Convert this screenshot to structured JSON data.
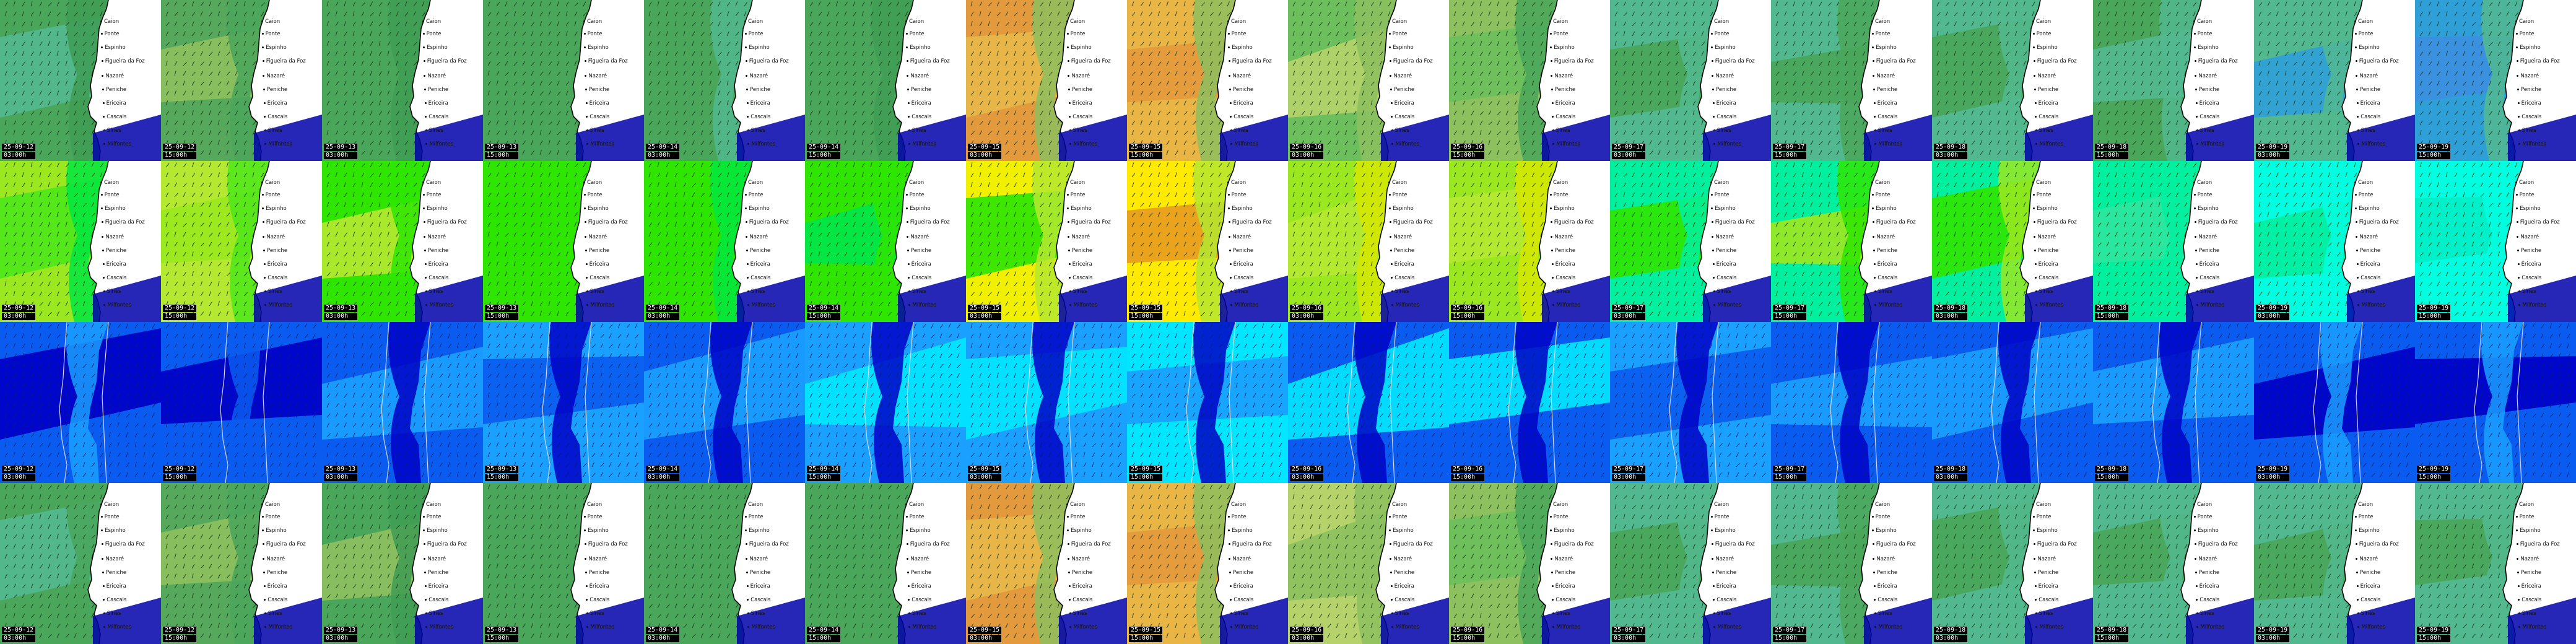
{
  "columns": [
    {
      "date": "25-09-12",
      "run": "03:00h"
    },
    {
      "date": "25-09-12",
      "run": "15:00h"
    },
    {
      "date": "25-09-13",
      "run": "03:00h"
    },
    {
      "date": "25-09-13",
      "run": "15:00h"
    },
    {
      "date": "25-09-14",
      "run": "03:00h"
    },
    {
      "date": "25-09-14",
      "run": "15:00h"
    },
    {
      "date": "25-09-15",
      "run": "03:00h"
    },
    {
      "date": "25-09-15",
      "run": "15:00h"
    },
    {
      "date": "25-09-16",
      "run": "03:00h"
    },
    {
      "date": "25-09-16",
      "run": "15:00h"
    },
    {
      "date": "25-09-17",
      "run": "03:00h"
    },
    {
      "date": "25-09-17",
      "run": "15:00h"
    },
    {
      "date": "25-09-18",
      "run": "03:00h"
    },
    {
      "date": "25-09-18",
      "run": "15:00h"
    },
    {
      "date": "25-09-19",
      "run": "03:00h"
    },
    {
      "date": "25-09-19",
      "run": "15:00h"
    }
  ],
  "places": [
    "Caion",
    "Ponte",
    "Espinho",
    "Figueira da Foz",
    "Nazaré",
    "Peniche",
    "Ericeira",
    "Cascais",
    "Sines",
    "Milfontes"
  ],
  "rows": [
    {
      "key": "waves",
      "arrows": "#1b3a1b",
      "show_places": true,
      "colors": [
        [
          "#4aa65a",
          "#52b88f",
          "#3f9c55"
        ],
        [
          "#56a85c",
          "#8dc05f",
          "#4aa65a"
        ],
        [
          "#4aa65a",
          "#4aa65a",
          "#3f9c55"
        ],
        [
          "#4aa65a",
          "#4aa65a",
          "#4aa65a"
        ],
        [
          "#4aa65a",
          "#4aa65a",
          "#52b88f"
        ],
        [
          "#4aa65a",
          "#4aa65a",
          "#3f9c55"
        ],
        [
          "#e39a3c",
          "#e8b84a",
          "#8dc05f"
        ],
        [
          "#e9b545",
          "#e39a3c",
          "#8dc05f"
        ],
        [
          "#6cbf5c",
          "#b5d36a",
          "#8dc05f"
        ],
        [
          "#8dc05f",
          "#6cbf5c",
          "#4aa65a"
        ],
        [
          "#52b88f",
          "#4aa65a",
          "#52b88f"
        ],
        [
          "#52b88f",
          "#4aa65a",
          "#4aa65a"
        ],
        [
          "#52b88f",
          "#4aa65a",
          "#52b88f"
        ],
        [
          "#4aa65a",
          "#52b88f",
          "#52b88f"
        ],
        [
          "#52b88f",
          "#2f9fd8",
          "#52b88f"
        ],
        [
          "#2f9fd8",
          "#3b8fe0",
          "#52b88f"
        ]
      ]
    },
    {
      "key": "period",
      "arrows": "#1e3a00",
      "show_places": true,
      "colors": [
        [
          "#9be820",
          "#4ee61a",
          "#00e640"
        ],
        [
          "#b5e830",
          "#9be820",
          "#4ee61a"
        ],
        [
          "#2ee600",
          "#b5e830",
          "#2ee600"
        ],
        [
          "#2ee600",
          "#2ee600",
          "#2ee600"
        ],
        [
          "#2ee600",
          "#2ee600",
          "#00e640"
        ],
        [
          "#2ee600",
          "#00e64a",
          "#2ee600"
        ],
        [
          "#f0f000",
          "#2ee600",
          "#b5e830"
        ],
        [
          "#ffea00",
          "#e89c20",
          "#b5e830"
        ],
        [
          "#9be820",
          "#b5e830",
          "#d6e800"
        ],
        [
          "#9be820",
          "#b5e830",
          "#d6e800"
        ],
        [
          "#00f0a0",
          "#2ee600",
          "#00f0a0"
        ],
        [
          "#00f0a0",
          "#9be820",
          "#2ee600"
        ],
        [
          "#00f0a0",
          "#2ee600",
          "#9be820"
        ],
        [
          "#00f0a0",
          "#2ee6a0",
          "#00f0a0"
        ],
        [
          "#00ffe0",
          "#00f0a0",
          "#00ffe0"
        ],
        [
          "#00ffe0",
          "#00f0c8",
          "#00ffe0"
        ]
      ]
    },
    {
      "key": "wind",
      "arrows": "#002266",
      "show_places": false,
      "colors": [
        [
          "#0a5cf0",
          "#0000c8",
          "#1aa0ff"
        ],
        [
          "#0a5cf0",
          "#0000c8",
          "#0a5cf0"
        ],
        [
          "#0a5cf0",
          "#1aa0ff",
          "#0000c8"
        ],
        [
          "#1aa0ff",
          "#0a5cf0",
          "#0000c8"
        ],
        [
          "#0a5cf0",
          "#1aa0ff",
          "#0000c8"
        ],
        [
          "#1aa0ff",
          "#00e6ff",
          "#0000c8"
        ],
        [
          "#1aa0ff",
          "#00e6ff",
          "#0000c8"
        ],
        [
          "#00e6ff",
          "#1aa0ff",
          "#0000c8"
        ],
        [
          "#0a5cf0",
          "#00e6ff",
          "#0000c8"
        ],
        [
          "#0a5cf0",
          "#00e6ff",
          "#0000c8"
        ],
        [
          "#1aa0ff",
          "#0a5cf0",
          "#0000c8"
        ],
        [
          "#0a5cf0",
          "#1aa0ff",
          "#0000c8"
        ],
        [
          "#0a5cf0",
          "#1aa0ff",
          "#0000c8"
        ],
        [
          "#0a5cf0",
          "#1aa0ff",
          "#0000c8"
        ],
        [
          "#0a5cf0",
          "#0000c8",
          "#1aa0ff"
        ],
        [
          "#0a5cf0",
          "#0000c8",
          "#1aa0ff"
        ]
      ]
    },
    {
      "key": "swell",
      "arrows": "#1b3a1b",
      "show_places": true,
      "colors": [
        [
          "#4aa65a",
          "#52b88f",
          "#4aa65a"
        ],
        [
          "#56a85c",
          "#8dc05f",
          "#4aa65a"
        ],
        [
          "#4aa65a",
          "#8dc05f",
          "#3f9c55"
        ],
        [
          "#4aa65a",
          "#4aa65a",
          "#4aa65a"
        ],
        [
          "#4aa65a",
          "#4aa65a",
          "#4aa65a"
        ],
        [
          "#4aa65a",
          "#4aa65a",
          "#4aa65a"
        ],
        [
          "#e39a3c",
          "#e8b84a",
          "#8dc05f"
        ],
        [
          "#e9b545",
          "#e39a3c",
          "#8dc05f"
        ],
        [
          "#b5d36a",
          "#8dc05f",
          "#8dc05f"
        ],
        [
          "#8dc05f",
          "#6cbf5c",
          "#4aa65a"
        ],
        [
          "#52b88f",
          "#4aa65a",
          "#52b88f"
        ],
        [
          "#52b88f",
          "#4aa65a",
          "#4aa65a"
        ],
        [
          "#52b88f",
          "#4aa65a",
          "#52b88f"
        ],
        [
          "#52b88f",
          "#4aa65a",
          "#52b88f"
        ],
        [
          "#52b88f",
          "#4aa65a",
          "#52b88f"
        ],
        [
          "#52b88f",
          "#4aa65a",
          "#52b88f"
        ]
      ]
    }
  ]
}
